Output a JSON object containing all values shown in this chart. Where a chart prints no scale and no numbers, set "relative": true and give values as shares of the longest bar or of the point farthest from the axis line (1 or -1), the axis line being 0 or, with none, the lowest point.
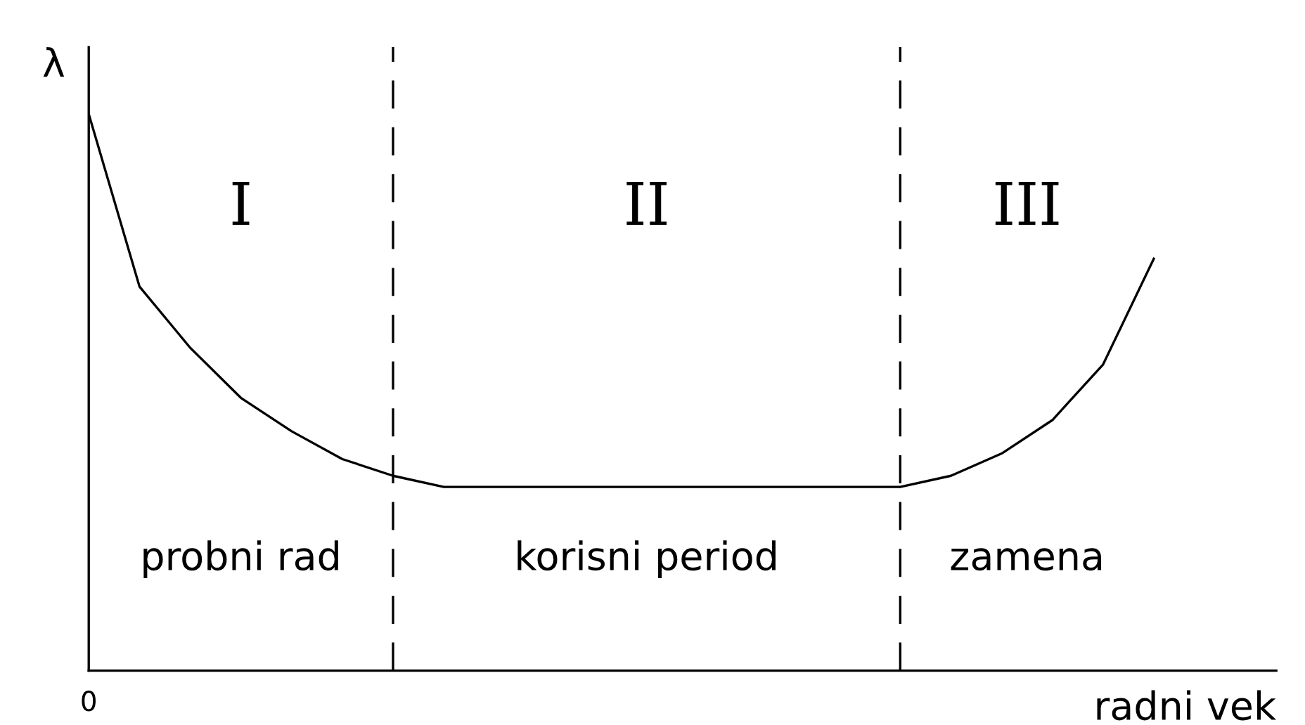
{
  "chart_data": {
    "type": "line",
    "relative": true,
    "xlabel": "radni vek",
    "ylabel": "λ",
    "categories": [
      null,
      null,
      null,
      null,
      null,
      null,
      null,
      null,
      null,
      null,
      null,
      null,
      null,
      null,
      null,
      null,
      null,
      null,
      null,
      null,
      null,
      null
    ],
    "series": [
      {
        "color": "#000000",
        "values": [
          1.0,
          0.69,
          0.58,
          0.49,
          0.43,
          0.38,
          0.35,
          0.33,
          0.33,
          0.33,
          0.33,
          0.33,
          0.33,
          0.33,
          0.33,
          0.33,
          0.33,
          0.35,
          0.39,
          0.45,
          0.55,
          0.74
        ]
      }
    ],
    "annotations": [
      "I",
      "II",
      "III",
      "probni rad",
      "korisni period",
      "zamena",
      "0"
    ]
  }
}
